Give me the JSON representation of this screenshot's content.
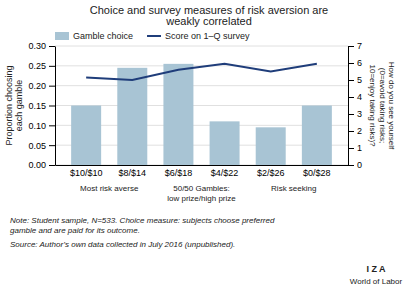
{
  "chart_data": {
    "type": "bar",
    "title": [
      "Choice and survey measures of risk aversion are",
      "weakly correlated"
    ],
    "categories": [
      "$10/$10",
      "$8/$14",
      "$6/$18",
      "$4/$22",
      "$2/$26",
      "$0/$28"
    ],
    "series": [
      {
        "name": "Gamble choice",
        "type": "bar",
        "color": "#a8c4d4",
        "values": [
          0.15,
          0.245,
          0.255,
          0.11,
          0.095,
          0.15
        ]
      },
      {
        "name": "Score on 1–Q survey",
        "type": "line",
        "color": "#1f3d7a",
        "axis": "y2",
        "values": [
          5.15,
          5.0,
          5.6,
          5.95,
          5.5,
          5.95
        ]
      }
    ],
    "ylabel": [
      "Proportion choosing",
      "each gamble"
    ],
    "y2label": [
      "How do you see yourself",
      "(0=avoid taking risks;",
      "10=enjoy taking risks)?"
    ],
    "ylim": [
      0,
      0.3
    ],
    "yticks": [
      {
        "value": 0,
        "label": "0.00"
      },
      0.05,
      {
        "value": 0.1,
        "label": "0.10"
      },
      0.15,
      {
        "value": 0.2,
        "label": "0.20"
      },
      0.25,
      {
        "value": 0.3,
        "label": "0.30"
      }
    ],
    "y2lim": [
      0,
      7
    ],
    "y2ticks": [
      0,
      1,
      2,
      3,
      4,
      5,
      6,
      7
    ],
    "grid": true,
    "legend": "upper left",
    "annotations": [
      [
        "Most risk averse"
      ],
      [
        "50/50 Gambles:",
        "low prize/high prize"
      ],
      [
        "Risk seeking"
      ],
      [
        "Note: Student sample, N=533. Choice measure: subjects choose preferred",
        "gamble and are paid for its outcome."
      ],
      [
        "Source: Author’s own data collected in July 2016 (unpublished)."
      ],
      [
        "I  Z  A"
      ],
      [
        "World of Labor"
      ]
    ]
  }
}
